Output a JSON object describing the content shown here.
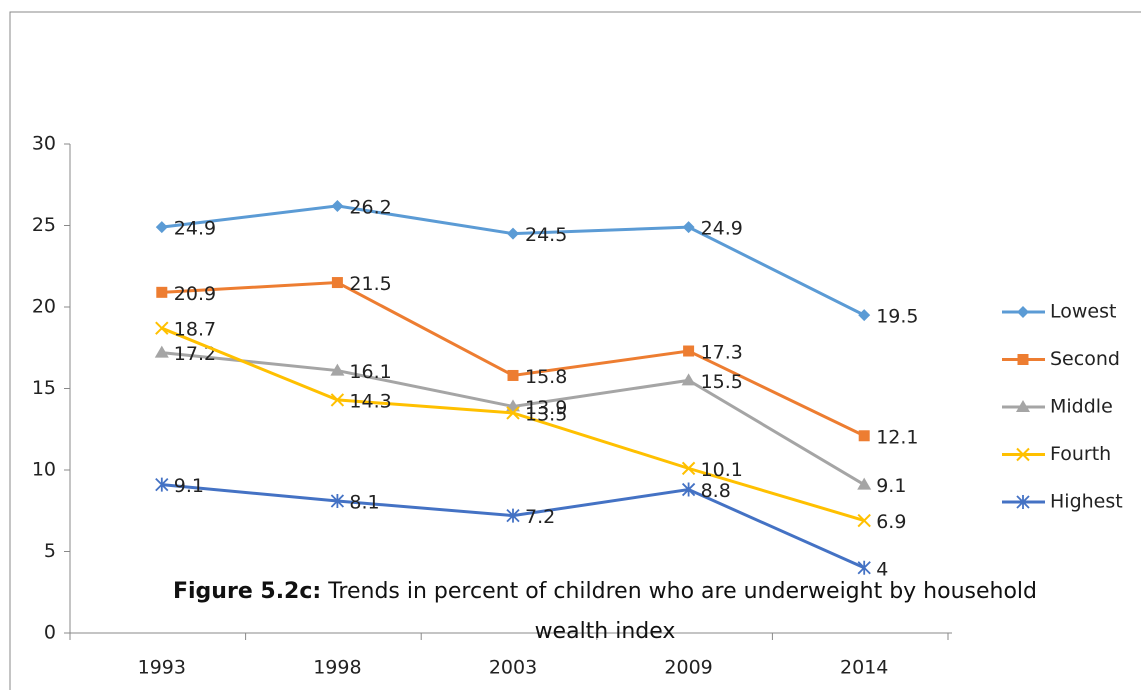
{
  "chart_data": {
    "type": "line",
    "title_label": "Figure 5.2c:",
    "title": "Trends in percent of children who are underweight by household wealth index",
    "categories": [
      "1993",
      "1998",
      "2003",
      "2009",
      "2014"
    ],
    "series": [
      {
        "name": "Lowest",
        "color": "#5b9bd5",
        "marker": "diamond",
        "values": [
          24.9,
          26.2,
          24.5,
          24.9,
          19.5
        ]
      },
      {
        "name": "Second",
        "color": "#ed7d31",
        "marker": "square",
        "values": [
          20.9,
          21.5,
          15.8,
          17.3,
          12.1
        ]
      },
      {
        "name": "Middle",
        "color": "#a5a5a5",
        "marker": "triangle",
        "values": [
          17.2,
          16.1,
          13.9,
          15.5,
          9.1
        ]
      },
      {
        "name": "Fourth",
        "color": "#ffc000",
        "marker": "x",
        "values": [
          18.7,
          14.3,
          13.5,
          10.1,
          6.9
        ]
      },
      {
        "name": "Highest",
        "color": "#4472c4",
        "marker": "star",
        "values": [
          9.1,
          8.1,
          7.2,
          8.8,
          4
        ]
      }
    ],
    "ylim": [
      0,
      30
    ],
    "yticks": [
      0,
      5,
      10,
      15,
      20,
      25,
      30
    ],
    "grid": false,
    "legend": "right"
  }
}
